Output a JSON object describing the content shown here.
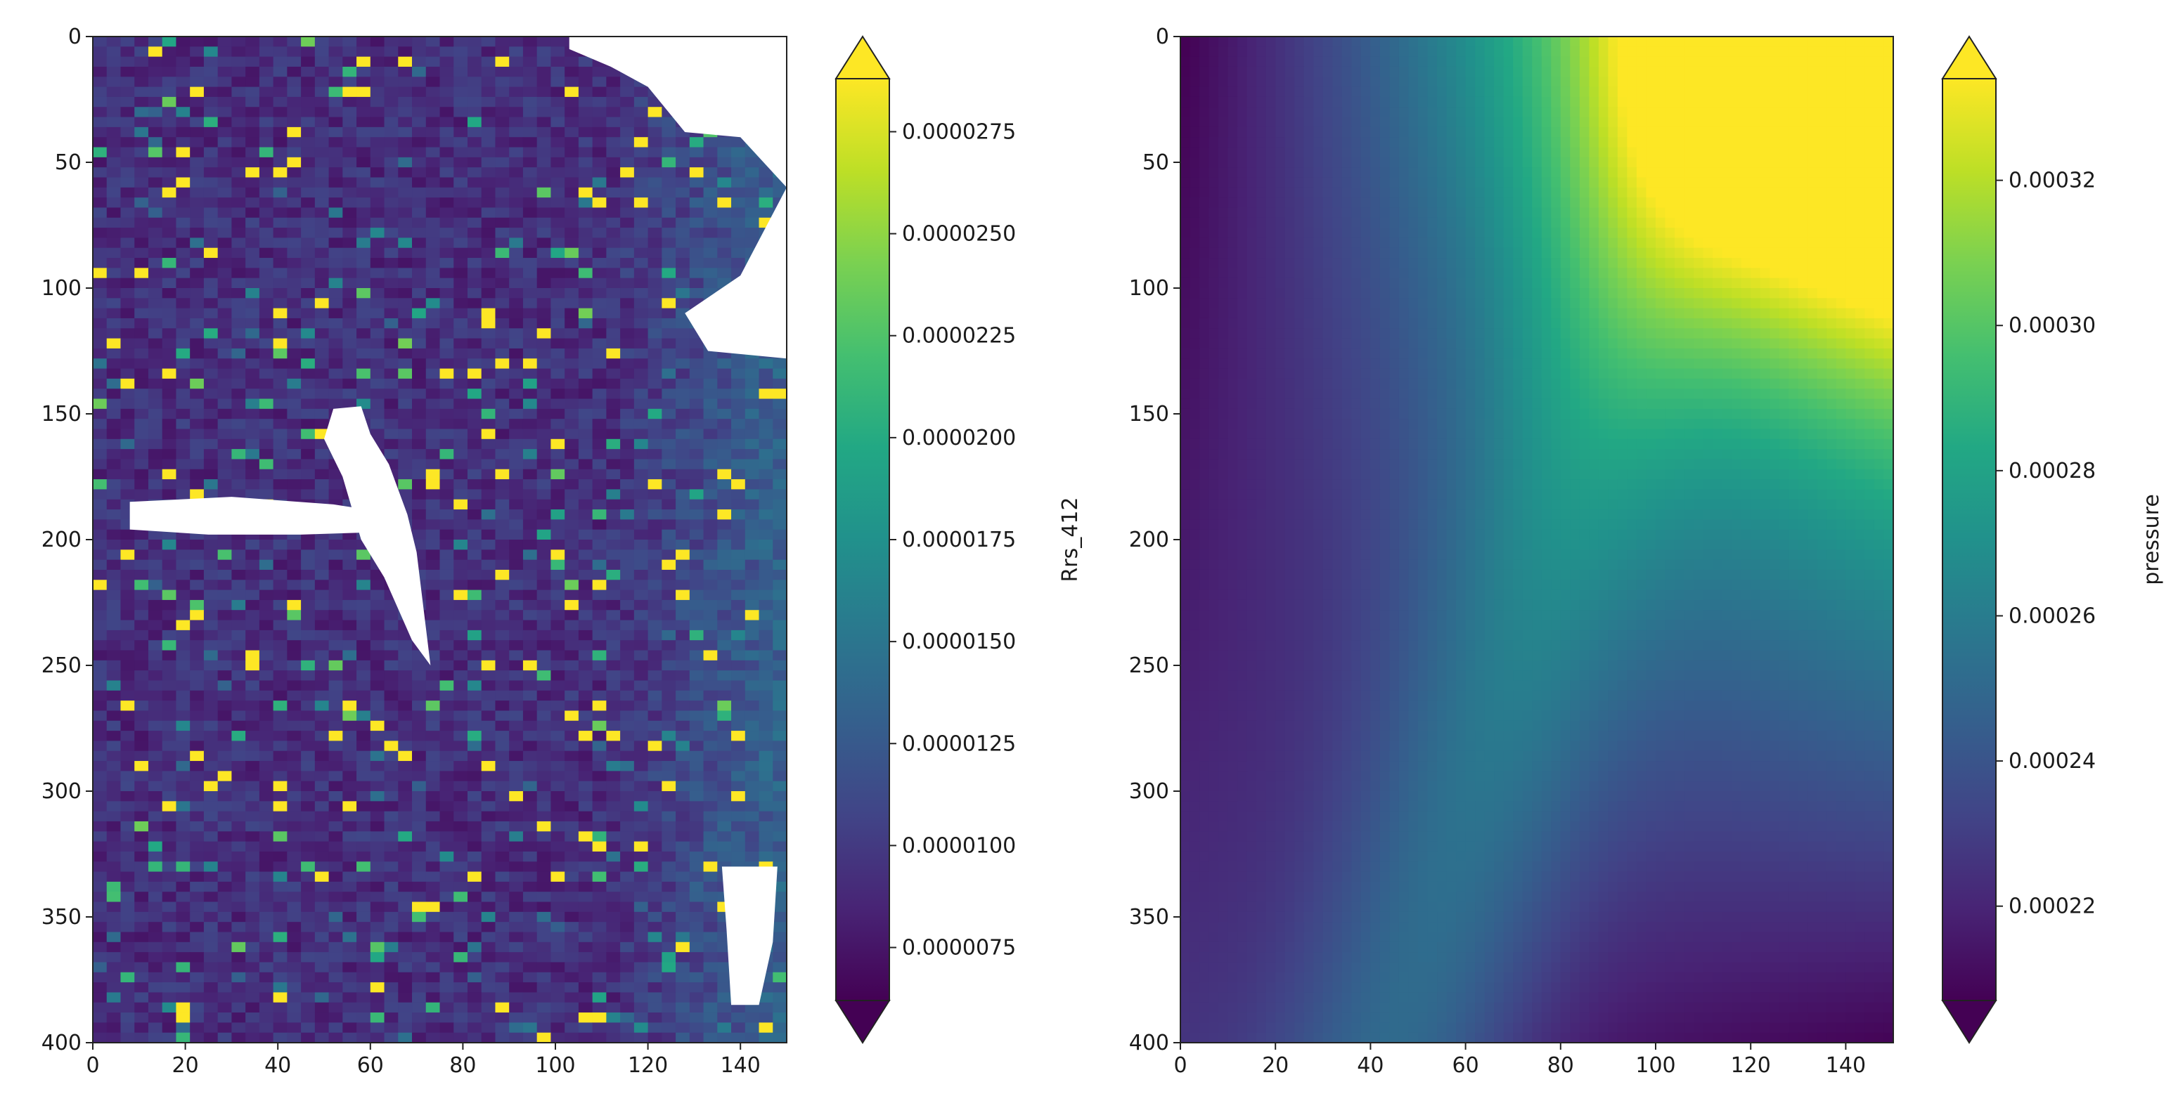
{
  "chart_data": [
    {
      "type": "heatmap",
      "xlim": [
        0,
        150
      ],
      "ylim": [
        400,
        0
      ],
      "x_ticks": [
        0,
        20,
        40,
        60,
        80,
        100,
        120,
        140
      ],
      "y_ticks": [
        0,
        50,
        100,
        150,
        200,
        250,
        300,
        350,
        400
      ],
      "x_tick_labels": [
        "0",
        "20",
        "40",
        "60",
        "80",
        "100",
        "120",
        "140"
      ],
      "y_tick_labels": [
        "0",
        "50",
        "100",
        "150",
        "200",
        "250",
        "300",
        "350",
        "400"
      ],
      "colormap": "viridis",
      "colorbar": {
        "label": "Rrs_412",
        "range": [
          6.2e-06,
          2.88e-05
        ],
        "extend": "both",
        "ticks": [
          7.5e-06,
          1e-05,
          1.25e-05,
          1.5e-05,
          1.75e-05,
          2e-05,
          2.25e-05,
          2.5e-05,
          2.75e-05
        ],
        "tick_labels": [
          "0.0000075",
          "0.0000100",
          "0.0000125",
          "0.0000150",
          "0.0000175",
          "0.0000200",
          "0.0000225",
          "0.0000250",
          "0.0000275"
        ]
      },
      "field": {
        "description_values": "noisy field, mostly low values with scattered high speckles, higher values near right edge",
        "base_value": 9.2e-06,
        "right_edge_value": 1.35e-05,
        "missing_regions": [
          {
            "x": [
              95,
              150
            ],
            "y": [
              0,
              125
            ]
          },
          {
            "x": [
              48,
              72
            ],
            "y": [
              148,
              250
            ]
          },
          {
            "x": [
              8,
              70
            ],
            "y": [
              182,
              202
            ]
          },
          {
            "x": [
              136,
              150
            ],
            "y": [
              330,
              385
            ]
          }
        ]
      }
    },
    {
      "type": "heatmap",
      "xlim": [
        0,
        150
      ],
      "ylim": [
        400,
        0
      ],
      "x_ticks": [
        0,
        20,
        40,
        60,
        80,
        100,
        120,
        140
      ],
      "y_ticks": [
        0,
        50,
        100,
        150,
        200,
        250,
        300,
        350,
        400
      ],
      "x_tick_labels": [
        "0",
        "20",
        "40",
        "60",
        "80",
        "100",
        "120",
        "140"
      ],
      "y_tick_labels": [
        "0",
        "50",
        "100",
        "150",
        "200",
        "250",
        "300",
        "350",
        "400"
      ],
      "colormap": "viridis",
      "colorbar": {
        "label": "pressure",
        "range": [
          0.000207,
          0.000334
        ],
        "extend": "both",
        "ticks": [
          0.00022,
          0.00024,
          0.00026,
          0.00028,
          0.0003,
          0.00032
        ],
        "tick_labels": [
          "0.00022",
          "0.00024",
          "0.00026",
          "0.00028",
          "0.00030",
          "0.00032"
        ]
      },
      "field": {
        "corner_values": {
          "top_left": 0.000207,
          "top_right": 0.000334,
          "bottom_left": 0.000225,
          "bottom_right": 0.000207
        },
        "ridge_value": 0.000253
      }
    }
  ]
}
